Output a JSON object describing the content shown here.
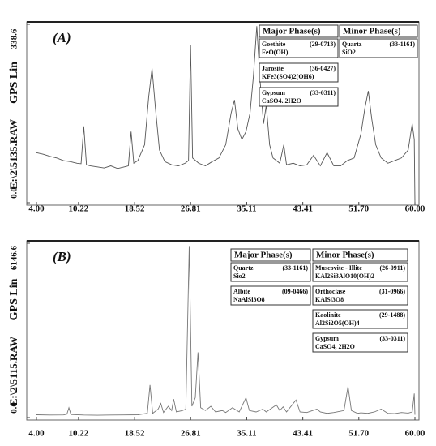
{
  "chart_data": [
    {
      "type": "line",
      "panel_label": "(A)",
      "ylabel": "GPS Lin",
      "file_label": "E:\\2\\5135.RAW",
      "color": "#555555",
      "xlim": [
        4,
        60
      ],
      "ylim": [
        0,
        338.6
      ],
      "xticks": [
        {
          "value": 4,
          "label": "4.00"
        },
        10.22,
        18.52,
        26.81,
        35.11,
        43.41,
        {
          "value": 51.7,
          "label": "51.70"
        },
        {
          "value": 60,
          "label": "60.00"
        }
      ],
      "yticks": [
        {
          "value": 0,
          "label": "0.0"
        },
        338.6
      ],
      "x": [
        4,
        5,
        6,
        7,
        8,
        9,
        10,
        10.6,
        11,
        11.4,
        12,
        13,
        14,
        15,
        16,
        17,
        17.6,
        18,
        18.4,
        19,
        20,
        20.6,
        21.1,
        21.6,
        22.2,
        23,
        24,
        25,
        26,
        26.5,
        26.8,
        27.1,
        28,
        29,
        30,
        31,
        32,
        32.8,
        33.3,
        33.8,
        34.4,
        35,
        35.6,
        36.1,
        36.6,
        37.1,
        37.6,
        38,
        38.5,
        39,
        40,
        40.6,
        41,
        42,
        43,
        44,
        45,
        46,
        47,
        48,
        49,
        50,
        51,
        52,
        52.6,
        53.1,
        53.6,
        54.2,
        55,
        56,
        57,
        58,
        59,
        59.6,
        59.9,
        60
      ],
      "values": [
        95,
        92,
        88,
        85,
        80,
        78,
        75,
        74,
        145,
        72,
        70,
        68,
        66,
        70,
        65,
        68,
        70,
        135,
        75,
        80,
        110,
        200,
        255,
        180,
        100,
        78,
        72,
        70,
        75,
        80,
        300,
        85,
        75,
        70,
        78,
        85,
        110,
        170,
        195,
        140,
        120,
        135,
        170,
        240,
        335,
        230,
        150,
        185,
        110,
        85,
        75,
        110,
        72,
        75,
        70,
        72,
        90,
        70,
        95,
        70,
        70,
        80,
        85,
        130,
        180,
        212,
        160,
        110,
        85,
        75,
        80,
        85,
        100,
        150,
        120,
        0
      ],
      "phases": {
        "major": {
          "heading": "Major Phase(s)",
          "entries": [
            {
              "name": "Goethite",
              "code": "(29-0713)",
              "formula": "FeO(OH)"
            },
            {
              "name": "Jarosite",
              "code": "(36-0427)",
              "formula": "KFe3(SO4)2(OH6)"
            },
            {
              "name": "Gypsum",
              "code": "(33-0311)",
              "formula": "CaSO4. 2H2O"
            }
          ]
        },
        "minor": {
          "heading": "Minor Phase(s)",
          "entries": [
            {
              "name": "Quartz",
              "code": "(33-1161)",
              "formula": "SiO2"
            }
          ]
        }
      }
    },
    {
      "type": "line",
      "panel_label": "(B)",
      "ylabel": "GPS Lin",
      "file_label": "E:\\2\\5115.RAW",
      "color": "#777777",
      "xlim": [
        4,
        60
      ],
      "ylim": [
        0,
        6146.6
      ],
      "xticks": [
        {
          "value": 4,
          "label": "4.00"
        },
        10.22,
        18.52,
        26.81,
        35.11,
        43.41,
        {
          "value": 51.7,
          "label": "51.70"
        },
        {
          "value": 60,
          "label": "60.00"
        }
      ],
      "yticks": [
        {
          "value": 0,
          "label": "0.0"
        },
        6146.6
      ],
      "x": [
        4,
        6,
        8,
        8.5,
        8.8,
        9.1,
        11,
        13,
        15,
        17,
        19,
        20.4,
        20.8,
        21.2,
        22,
        22.4,
        22.8,
        23.5,
        24,
        24.3,
        24.7,
        25.6,
        26.1,
        26.6,
        27,
        27.5,
        27.9,
        28.3,
        29,
        29.8,
        30.5,
        31.5,
        32,
        33,
        34,
        35,
        35.5,
        36.5,
        37.5,
        38,
        39.5,
        40,
        40.5,
        41,
        42.4,
        43,
        44,
        45.5,
        46,
        47,
        48,
        49.5,
        50.1,
        50.6,
        51.5,
        52,
        53,
        54,
        55,
        56,
        57,
        58,
        59,
        59.6,
        59.9,
        60
      ],
      "values": [
        100,
        90,
        95,
        120,
        350,
        110,
        90,
        85,
        90,
        95,
        100,
        150,
        1150,
        150,
        300,
        500,
        180,
        400,
        250,
        650,
        200,
        250,
        300,
        6050,
        400,
        700,
        2300,
        350,
        250,
        400,
        200,
        250,
        180,
        350,
        200,
        700,
        250,
        200,
        300,
        200,
        450,
        250,
        380,
        200,
        620,
        200,
        180,
        300,
        200,
        150,
        180,
        250,
        1100,
        250,
        150,
        170,
        150,
        200,
        300,
        150,
        140,
        180,
        160,
        200,
        850,
        100
      ],
      "phases": {
        "major": {
          "heading": "Major Phase(s)",
          "entries": [
            {
              "name": "Quartz",
              "code": "(33-1161)",
              "formula": "Sio2"
            },
            {
              "name": "Albite",
              "code": "(09-0466)",
              "formula": "NaAlSi3O8"
            }
          ]
        },
        "minor": {
          "heading": "Minor Phase(s)",
          "entries": [
            {
              "name": "Muscovite - Illite",
              "code": "(26-0911)",
              "formula": "KAl2Si3AlO10(OH)2"
            },
            {
              "name": "Orthoclase",
              "code": "(31-0966)",
              "formula": "KAlSi3O8"
            },
            {
              "name": "Kaolinite",
              "code": "(29-1488)",
              "formula": "Al2Si2O5(OH)4"
            },
            {
              "name": "Gypsum",
              "code": "(33-0311)",
              "formula": "CaSO4, 2H2O"
            }
          ]
        }
      }
    }
  ]
}
